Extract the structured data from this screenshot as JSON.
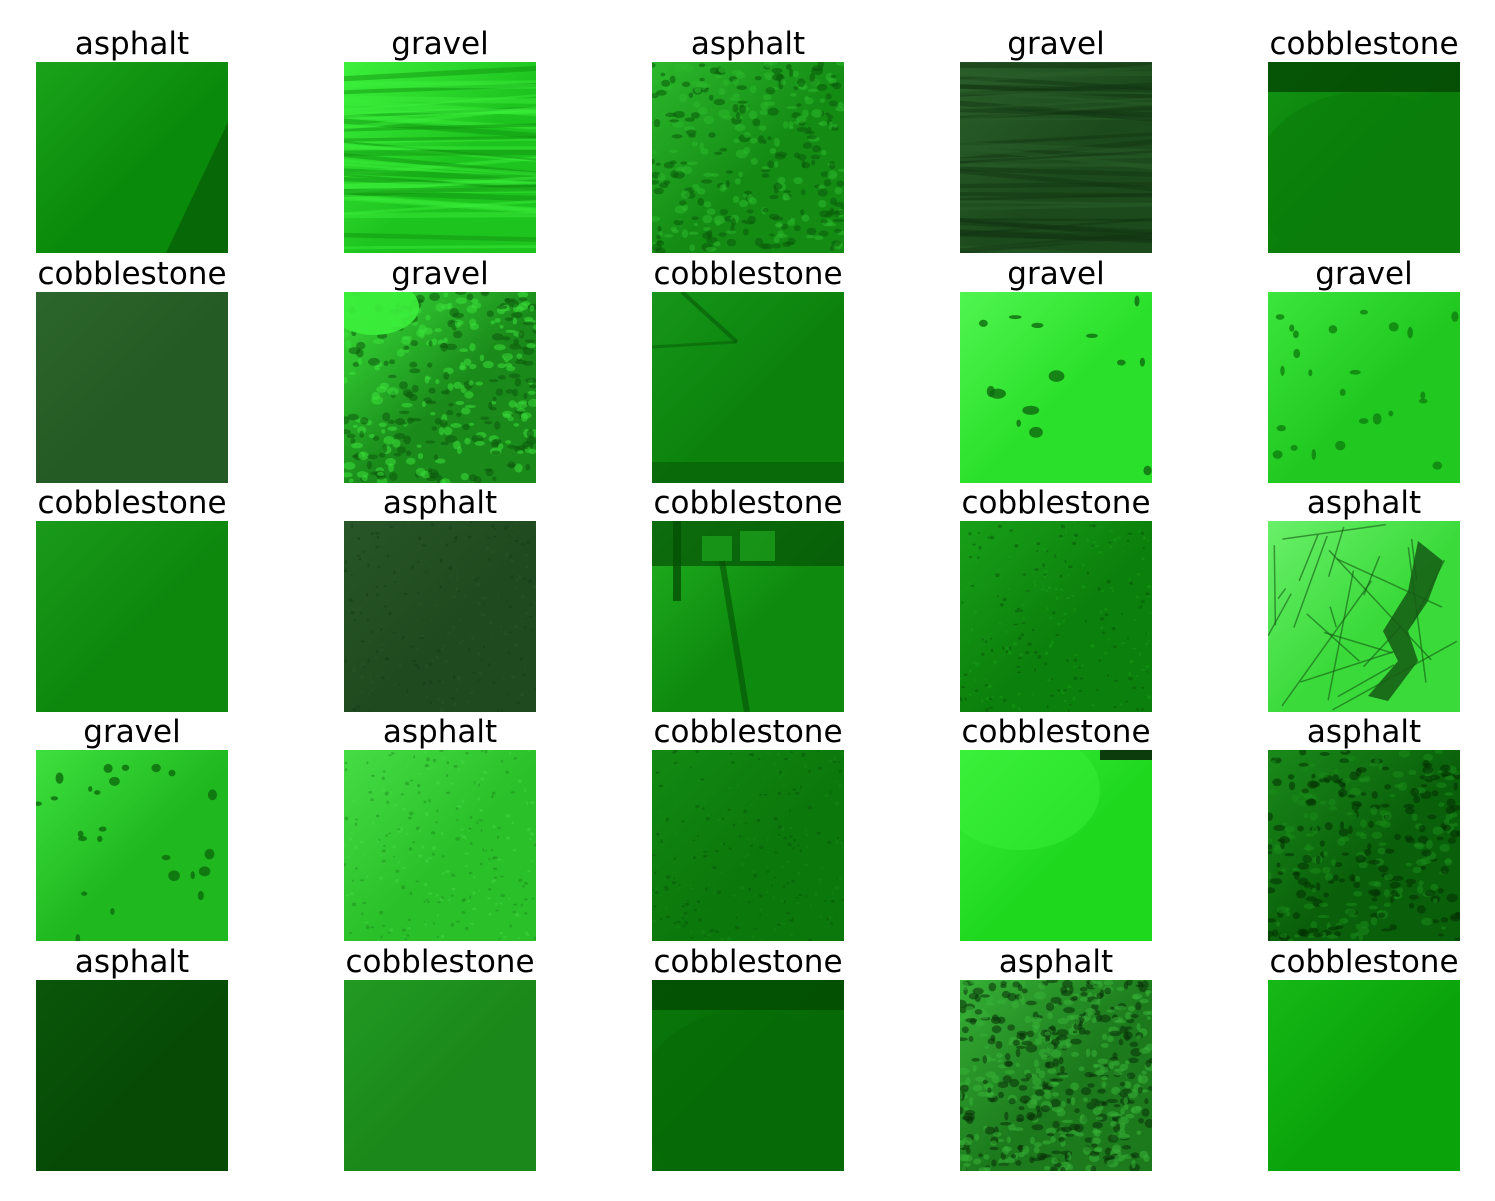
{
  "figure": {
    "rows": 5,
    "cols": 5,
    "panels": [
      {
        "label": "asphalt",
        "base": "#0a8a0a",
        "hi": "#1aa31a",
        "lo": "#065a06",
        "texture": "smooth-corner"
      },
      {
        "label": "gravel",
        "base": "#1ec41e",
        "hi": "#3cf03c",
        "lo": "#0f8f0f",
        "texture": "streaks"
      },
      {
        "label": "asphalt",
        "base": "#148c14",
        "hi": "#2cb82c",
        "lo": "#0a5a0a",
        "texture": "rough"
      },
      {
        "label": "gravel",
        "base": "#1c4a1c",
        "hi": "#2a5e2a",
        "lo": "#123412",
        "texture": "dark-streaks"
      },
      {
        "label": "cobblestone",
        "base": "#0a7d0a",
        "hi": "#129412",
        "lo": "#044504",
        "texture": "vignette"
      },
      {
        "label": "cobblestone",
        "base": "#245a24",
        "hi": "#2c662c",
        "lo": "#1e4e1e",
        "texture": "flat"
      },
      {
        "label": "gravel",
        "base": "#1a8a1a",
        "hi": "#3ae03a",
        "lo": "#0d5a0d",
        "texture": "pebbles"
      },
      {
        "label": "cobblestone",
        "base": "#0c820c",
        "hi": "#16961a",
        "lo": "#075a07",
        "texture": "edge"
      },
      {
        "label": "gravel",
        "base": "#2ae02a",
        "hi": "#50f550",
        "lo": "#0f6a0f",
        "texture": "spots"
      },
      {
        "label": "gravel",
        "base": "#20c820",
        "hi": "#3ce63c",
        "lo": "#0f7f0f",
        "texture": "spots-small"
      },
      {
        "label": "cobblestone",
        "base": "#0d880d",
        "hi": "#1a9a1a",
        "lo": "#086a08",
        "texture": "flat"
      },
      {
        "label": "asphalt",
        "base": "#1f4a1f",
        "hi": "#285628",
        "lo": "#163a16",
        "texture": "speckle"
      },
      {
        "label": "cobblestone",
        "base": "#0e8a0e",
        "hi": "#20b020",
        "lo": "#055005",
        "texture": "street"
      },
      {
        "label": "cobblestone",
        "base": "#0c800c",
        "hi": "#18a018",
        "lo": "#065006",
        "texture": "grain"
      },
      {
        "label": "asphalt",
        "base": "#3ada3a",
        "hi": "#6af06a",
        "lo": "#155a15",
        "texture": "cracked"
      },
      {
        "label": "gravel",
        "base": "#1fb81f",
        "hi": "#3ee03e",
        "lo": "#0d6a0d",
        "texture": "spots-small"
      },
      {
        "label": "asphalt",
        "base": "#2ac02a",
        "hi": "#46dc46",
        "lo": "#1a8a1a",
        "texture": "fine"
      },
      {
        "label": "cobblestone",
        "base": "#0b780b",
        "hi": "#138a13",
        "lo": "#065406",
        "texture": "grain"
      },
      {
        "label": "cobblestone",
        "base": "#1ed81e",
        "hi": "#3af03a",
        "lo": "#0fa00f",
        "texture": "bright"
      },
      {
        "label": "asphalt",
        "base": "#0a600a",
        "hi": "#1a8a1a",
        "lo": "#043004",
        "texture": "rough"
      },
      {
        "label": "asphalt",
        "base": "#064a06",
        "hi": "#0a560a",
        "lo": "#033a03",
        "texture": "flat"
      },
      {
        "label": "cobblestone",
        "base": "#1a881a",
        "hi": "#229a22",
        "lo": "#127012",
        "texture": "flat"
      },
      {
        "label": "cobblestone",
        "base": "#066a06",
        "hi": "#0a780a",
        "lo": "#034a03",
        "texture": "vignette"
      },
      {
        "label": "asphalt",
        "base": "#1c7a1c",
        "hi": "#36b036",
        "lo": "#0a300a",
        "texture": "dense"
      },
      {
        "label": "cobblestone",
        "base": "#0aa40a",
        "hi": "#16b816",
        "lo": "#088a08",
        "texture": "flat"
      }
    ]
  }
}
